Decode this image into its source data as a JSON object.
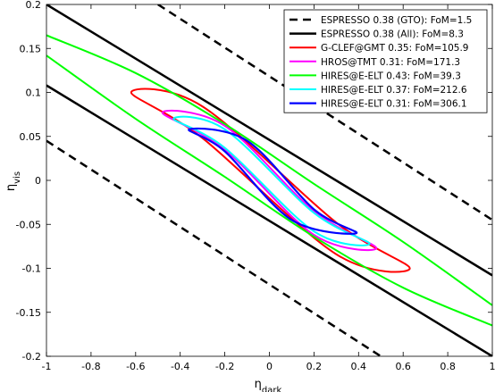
{
  "chart_data": {
    "type": "line",
    "title": "",
    "xlabel": "η",
    "xlabel_sub": "dark",
    "ylabel": "η",
    "ylabel_sub": "vis",
    "xlim": [
      -1,
      1
    ],
    "ylim": [
      -0.2,
      0.2
    ],
    "grid": false,
    "legend_position": "top-right",
    "x_ticks": [
      -1,
      -0.8,
      -0.6,
      -0.4,
      -0.2,
      0,
      0.2,
      0.4,
      0.6,
      0.8,
      1
    ],
    "x_tick_labels": [
      "-1",
      "-0.8",
      "-0.6",
      "-0.4",
      "-0.2",
      "0",
      "0.2",
      "0.4",
      "0.6",
      "0.8",
      "1"
    ],
    "y_ticks": [
      -0.2,
      -0.15,
      -0.1,
      -0.05,
      0,
      0.05,
      0.1,
      0.15,
      0.2
    ],
    "y_tick_labels": [
      "-0.2",
      "-0.15",
      "-0.1",
      "-0.05",
      "0",
      "0.05",
      "0.1",
      "0.15",
      "0.2"
    ],
    "series": [
      {
        "name": "ESPRESSO 0.38 (GTO): FoM=1.5",
        "color": "#000000",
        "style": "dashed",
        "width": 2.5,
        "curves": [
          {
            "kind": "line",
            "points": [
              [
                -0.5,
                0.2
              ],
              [
                1,
                -0.045
              ]
            ]
          },
          {
            "kind": "line",
            "points": [
              [
                -1,
                0.045
              ],
              [
                0.5,
                -0.2
              ]
            ]
          }
        ]
      },
      {
        "name": "ESPRESSO 0.38 (All): FoM=8.3",
        "color": "#000000",
        "style": "solid",
        "width": 2.5,
        "curves": [
          {
            "kind": "line",
            "points": [
              [
                -1,
                0.2
              ],
              [
                1,
                -0.108
              ]
            ]
          },
          {
            "kind": "line",
            "points": [
              [
                -1,
                0.108
              ],
              [
                1,
                -0.2
              ]
            ]
          }
        ]
      },
      {
        "name": "G-CLEF@GMT 0.35: FoM=105.9",
        "color": "#ff0000",
        "style": "solid",
        "width": 2,
        "curves": [
          {
            "kind": "ellipse",
            "points": [
              [
                -0.62,
                0.1
              ],
              [
                -0.3,
                0.084
              ],
              [
                0.3,
                -0.048
              ],
              [
                0.63,
                -0.1
              ],
              [
                0.3,
                -0.084
              ],
              [
                -0.3,
                0.048
              ]
            ]
          }
        ]
      },
      {
        "name": "HROS@TMT 0.31: FoM=171.3",
        "color": "#ff00ff",
        "style": "solid",
        "width": 2,
        "curves": [
          {
            "kind": "ellipse",
            "points": [
              [
                -0.48,
                0.077
              ],
              [
                -0.2,
                0.062
              ],
              [
                0.2,
                -0.035
              ],
              [
                0.48,
                -0.077
              ],
              [
                0.2,
                -0.062
              ],
              [
                -0.2,
                0.035
              ]
            ]
          }
        ]
      },
      {
        "name": "HIRES@E-ELT 0.43: FoM=39.3",
        "color": "#00ff00",
        "style": "solid",
        "width": 2,
        "curves": [
          {
            "kind": "open",
            "points": [
              [
                -1,
                0.165
              ],
              [
                -0.6,
                0.122
              ],
              [
                -0.2,
                0.064
              ],
              [
                0.2,
                -0.004
              ],
              [
                0.6,
                -0.07
              ],
              [
                1,
                -0.142
              ]
            ]
          },
          {
            "kind": "open",
            "points": [
              [
                -1,
                0.142
              ],
              [
                -0.6,
                0.07
              ],
              [
                -0.2,
                0.004
              ],
              [
                0.2,
                -0.064
              ],
              [
                0.6,
                -0.122
              ],
              [
                1,
                -0.165
              ]
            ]
          }
        ]
      },
      {
        "name": "HIRES@E-ELT 0.37: FoM=212.6",
        "color": "#00ffff",
        "style": "solid",
        "width": 2,
        "curves": [
          {
            "kind": "ellipse",
            "points": [
              [
                -0.43,
                0.07
              ],
              [
                -0.2,
                0.058
              ],
              [
                0.2,
                -0.037
              ],
              [
                0.45,
                -0.072
              ],
              [
                0.2,
                -0.058
              ],
              [
                -0.2,
                0.037
              ]
            ]
          }
        ]
      },
      {
        "name": "HIRES@E-ELT 0.31: FoM=306.1",
        "color": "#0000ff",
        "style": "solid",
        "width": 2.2,
        "curves": [
          {
            "kind": "ellipse",
            "points": [
              [
                -0.36,
                0.058
              ],
              [
                -0.1,
                0.045
              ],
              [
                0.2,
                -0.033
              ],
              [
                0.39,
                -0.06
              ],
              [
                0.1,
                -0.045
              ],
              [
                -0.2,
                0.033
              ]
            ]
          }
        ]
      }
    ]
  }
}
